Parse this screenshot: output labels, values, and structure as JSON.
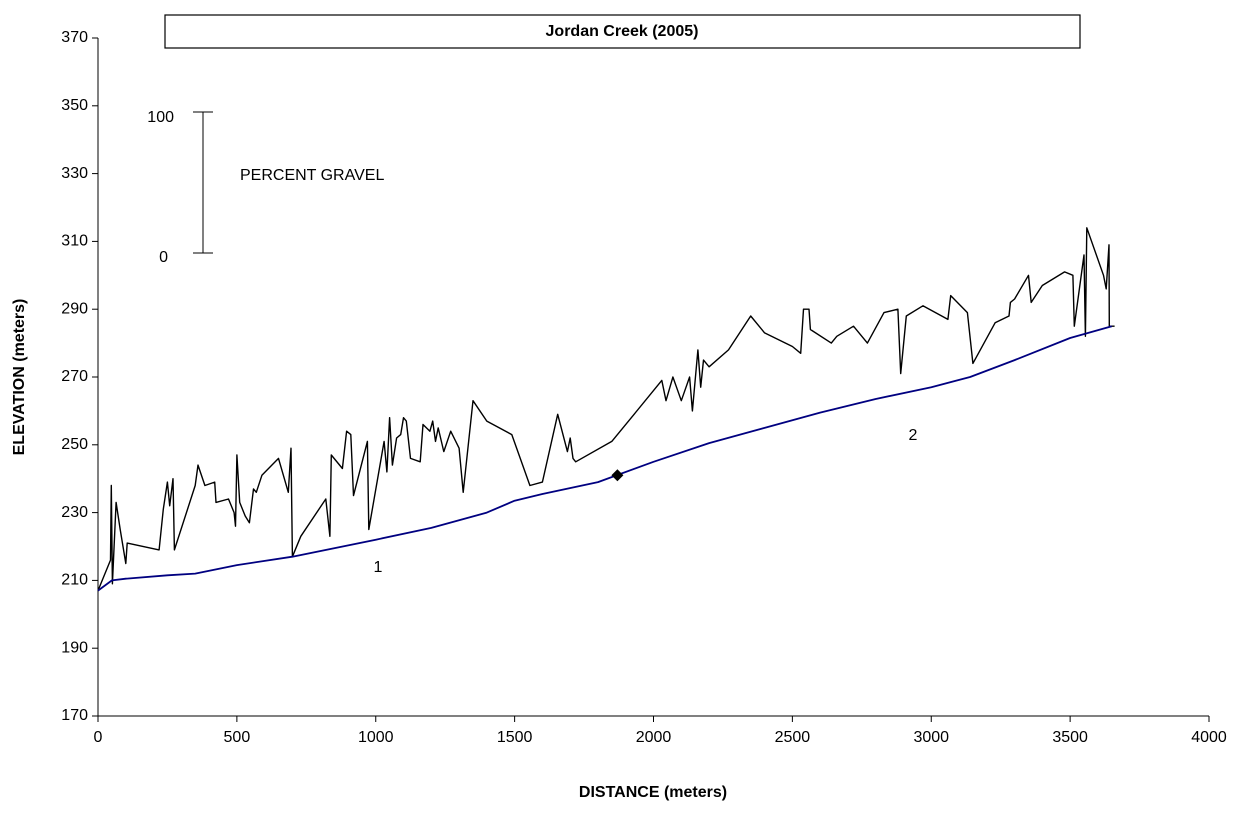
{
  "chart_data": {
    "type": "line",
    "title": "Jordan Creek (2005)",
    "xlabel": "DISTANCE (meters)",
    "ylabel": "ELEVATION (meters)",
    "xlim": [
      0,
      4000
    ],
    "ylim": [
      170,
      370
    ],
    "xticks": [
      0,
      500,
      1000,
      1500,
      2000,
      2500,
      3000,
      3500,
      4000
    ],
    "yticks": [
      170,
      190,
      210,
      230,
      250,
      270,
      290,
      310,
      330,
      350,
      370
    ],
    "grid": false,
    "series": [
      {
        "color": "#000000",
        "x": [
          0,
          45,
          48,
          52,
          65,
          80,
          100,
          105,
          220,
          235,
          250,
          258,
          270,
          275,
          350,
          360,
          385,
          420,
          425,
          470,
          490,
          495,
          500,
          510,
          530,
          545,
          560,
          570,
          590,
          650,
          685,
          695,
          700,
          730,
          820,
          835,
          840,
          880,
          895,
          910,
          920,
          970,
          975,
          1030,
          1040,
          1050,
          1060,
          1075,
          1090,
          1100,
          1110,
          1125,
          1160,
          1170,
          1195,
          1205,
          1215,
          1225,
          1245,
          1270,
          1300,
          1315,
          1350,
          1400,
          1490,
          1555,
          1600,
          1655,
          1690,
          1700,
          1710,
          1720,
          1850,
          1930,
          2030,
          2045,
          2070,
          2100,
          2130,
          2140,
          2160,
          2170,
          2180,
          2200,
          2270,
          2350,
          2400,
          2500,
          2530,
          2540,
          2560,
          2565,
          2640,
          2660,
          2720,
          2770,
          2830,
          2880,
          2890,
          2910,
          2970,
          3060,
          3070,
          3130,
          3150,
          3230,
          3280,
          3285,
          3300,
          3350,
          3360,
          3400,
          3480,
          3510,
          3515,
          3550,
          3555,
          3560,
          3620,
          3630,
          3640,
          3641,
          3660
        ],
        "values": [
          207,
          216,
          238,
          209,
          233,
          225,
          215,
          221,
          219,
          231,
          239,
          232,
          240,
          219,
          238,
          244,
          238,
          239,
          233,
          234,
          230,
          226,
          247,
          233,
          229,
          227,
          237,
          236,
          241,
          246,
          236,
          249,
          217,
          223,
          234,
          223,
          247,
          243,
          254,
          253,
          235,
          251,
          225,
          251,
          242,
          258,
          244,
          252,
          253,
          258,
          257,
          246,
          245,
          256,
          254,
          257,
          251,
          255,
          248,
          254,
          249,
          236,
          263,
          257,
          253,
          238,
          239,
          259,
          248,
          252,
          246,
          245,
          251,
          259,
          269,
          263,
          270,
          263,
          270,
          260,
          278,
          267,
          275,
          273,
          278,
          288,
          283,
          279,
          277,
          290,
          290,
          284,
          280,
          282,
          285,
          280,
          289,
          290,
          271,
          288,
          291,
          287,
          294,
          289,
          274,
          286,
          288,
          292,
          293,
          300,
          292,
          297,
          301,
          300,
          285,
          306,
          282,
          314,
          300,
          296,
          309,
          285,
          285
        ]
      },
      {
        "color": "#000080",
        "x": [
          0,
          50,
          100,
          250,
          350,
          500,
          700,
          1000,
          1200,
          1400,
          1500,
          1600,
          1800,
          2000,
          2200,
          2400,
          2600,
          2800,
          3000,
          3140,
          3300,
          3500,
          3650
        ],
        "values": [
          207,
          210,
          210.5,
          211.5,
          212,
          214.5,
          217,
          222,
          225.5,
          230,
          233.5,
          235.5,
          239,
          245,
          250.5,
          255,
          259.5,
          263.5,
          267,
          270,
          275,
          281.5,
          285
        ]
      }
    ],
    "points": [
      {
        "x": 1870,
        "y": 241
      }
    ],
    "annotations": [
      "1",
      "2",
      "100",
      "0",
      "PERCENT GRAVEL"
    ]
  }
}
